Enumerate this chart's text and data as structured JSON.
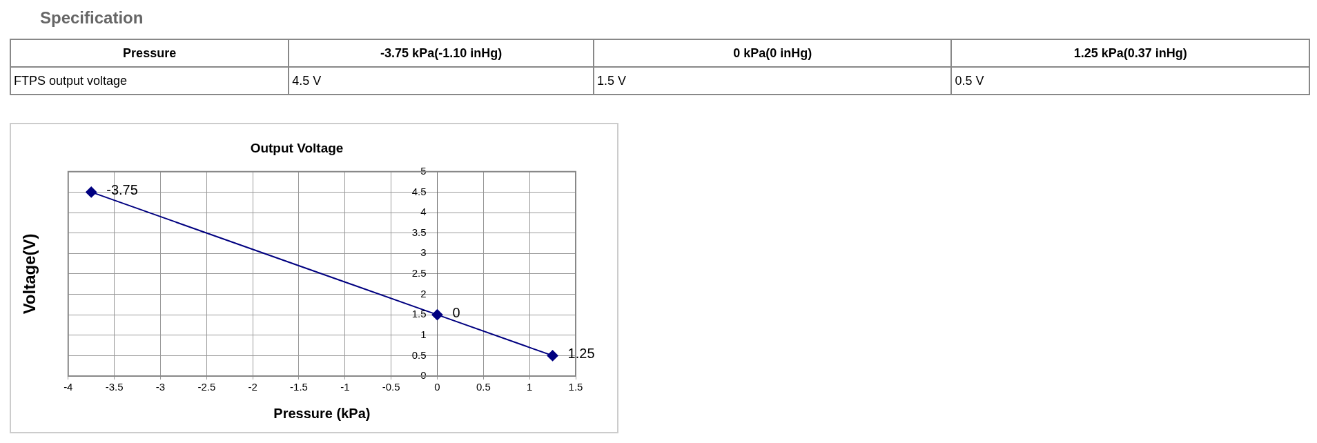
{
  "chart_data": [
    {
      "type": "other",
      "title": "Specification",
      "annotations": [
        "Pressure",
        "-3.75 kPa(-1.10 inHg)",
        "0 kPa(0 inHg)",
        "1.25 kPa(0.37 inHg)",
        "FTPS output voltage",
        "4.5 V",
        "1.5 V",
        "0.5 V"
      ]
    },
    {
      "type": "line",
      "title": "Output Voltage",
      "xlabel": "Pressure (kPa)",
      "ylabel": "Voltage(V)",
      "x": [
        -3.75,
        0,
        1.25
      ],
      "series": [
        {
          "color": "#000080",
          "values": [
            4.5,
            1.5,
            0.5
          ]
        }
      ],
      "annotations": [
        {
          "text": "-3.75",
          "x": -3.75,
          "y": 4.5
        },
        {
          "text": "0",
          "x": 0,
          "y": 1.5
        },
        {
          "text": "1.25",
          "x": 1.25,
          "y": 0.5
        }
      ],
      "xlim": [
        -4,
        1.5
      ],
      "xticks": [
        -4,
        -3.5,
        -3,
        -2.5,
        -2,
        -1.5,
        -1,
        -0.5,
        0,
        0.5,
        1,
        1.5
      ],
      "ylim": [
        0,
        5
      ],
      "yticks": [
        0,
        0.5,
        1,
        1.5,
        2,
        2.5,
        3,
        3.5,
        4,
        4.5,
        5
      ],
      "grid": true,
      "legend": false,
      "marker": "diamond",
      "line_style": "solid"
    }
  ]
}
